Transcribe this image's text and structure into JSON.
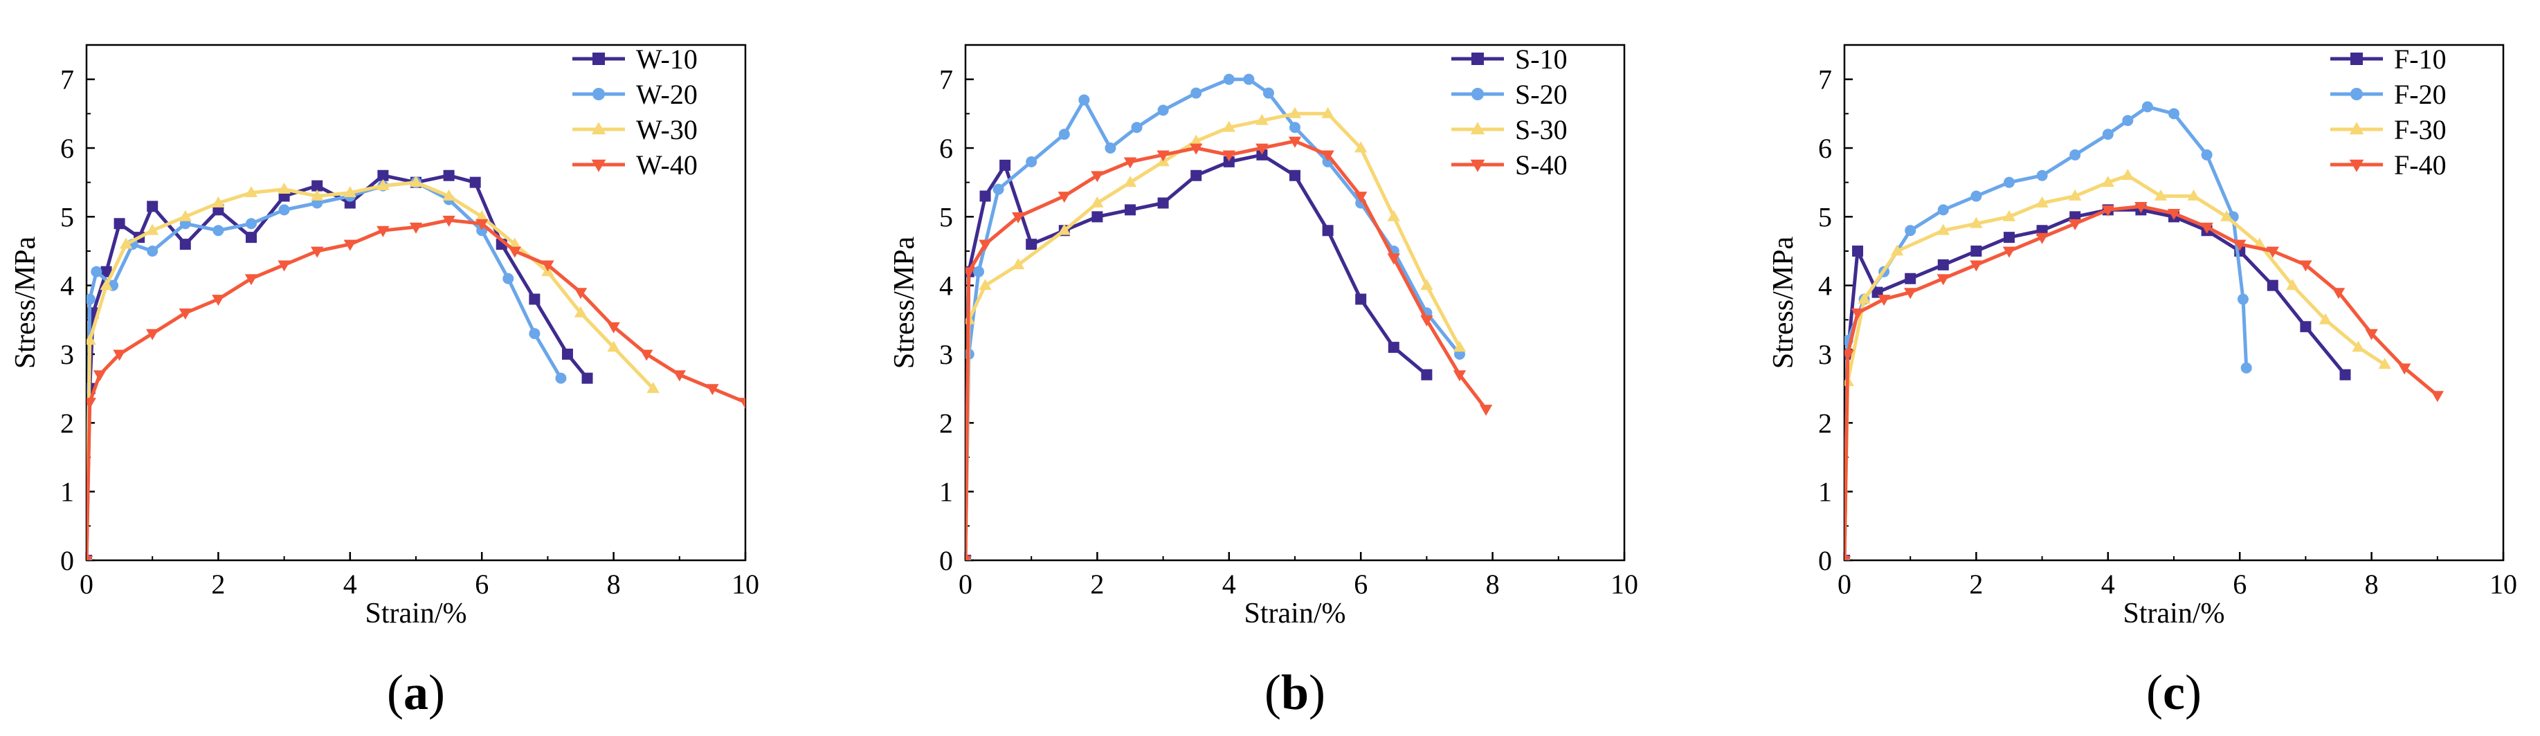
{
  "chart_data": [
    {
      "type": "line",
      "panel": "a",
      "caption": {
        "open": "(",
        "letter": "a",
        "close": ")"
      },
      "xlabel": "Strain/%",
      "ylabel": "Stress/MPa",
      "xlim": [
        0,
        10
      ],
      "ylim": [
        0,
        7.5
      ],
      "xticks": [
        0,
        2,
        4,
        6,
        8,
        10
      ],
      "yticks": [
        0,
        1,
        2,
        3,
        4,
        5,
        6,
        7
      ],
      "grid": false,
      "legend_position": "top-right",
      "series": [
        {
          "name": "W-10",
          "color": "#3f2b8f",
          "marker": "square",
          "x": [
            0,
            0.05,
            0.1,
            0.3,
            0.5,
            0.8,
            1.0,
            1.5,
            2.0,
            2.5,
            3.0,
            3.5,
            4.0,
            4.5,
            5.0,
            5.5,
            5.9,
            6.3,
            6.8,
            7.3,
            7.6
          ],
          "y": [
            0,
            2.5,
            3.6,
            4.2,
            4.9,
            4.7,
            5.15,
            4.6,
            5.1,
            4.7,
            5.3,
            5.45,
            5.2,
            5.6,
            5.5,
            5.6,
            5.5,
            4.6,
            3.8,
            3.0,
            2.65
          ]
        },
        {
          "name": "W-20",
          "color": "#6aa6ea",
          "marker": "circle",
          "x": [
            0,
            0.05,
            0.15,
            0.4,
            0.7,
            1.0,
            1.5,
            2.0,
            2.5,
            3.0,
            3.5,
            4.0,
            4.5,
            5.0,
            5.5,
            6.0,
            6.4,
            6.8,
            7.2
          ],
          "y": [
            0,
            3.8,
            4.2,
            4.0,
            4.6,
            4.5,
            4.9,
            4.8,
            4.9,
            5.1,
            5.2,
            5.3,
            5.45,
            5.5,
            5.25,
            4.8,
            4.1,
            3.3,
            2.65
          ]
        },
        {
          "name": "W-30",
          "color": "#f7d773",
          "marker": "triangle-up",
          "x": [
            0,
            0.05,
            0.3,
            0.6,
            1.0,
            1.5,
            2.0,
            2.5,
            3.0,
            3.5,
            4.0,
            4.5,
            5.0,
            5.5,
            6.0,
            6.5,
            7.0,
            7.5,
            8.0,
            8.6
          ],
          "y": [
            0,
            3.2,
            4.0,
            4.6,
            4.8,
            5.0,
            5.2,
            5.35,
            5.4,
            5.3,
            5.35,
            5.45,
            5.5,
            5.3,
            5.0,
            4.6,
            4.2,
            3.6,
            3.1,
            2.5
          ]
        },
        {
          "name": "W-40",
          "color": "#f4593b",
          "marker": "triangle-down",
          "x": [
            0,
            0.05,
            0.2,
            0.5,
            1.0,
            1.5,
            2.0,
            2.5,
            3.0,
            3.5,
            4.0,
            4.5,
            5.0,
            5.5,
            6.0,
            6.5,
            7.0,
            7.5,
            8.0,
            8.5,
            9.0,
            9.5,
            10.0
          ],
          "y": [
            0,
            2.3,
            2.7,
            3.0,
            3.3,
            3.6,
            3.8,
            4.1,
            4.3,
            4.5,
            4.6,
            4.8,
            4.85,
            4.95,
            4.9,
            4.5,
            4.3,
            3.9,
            3.4,
            3.0,
            2.7,
            2.5,
            2.3
          ]
        }
      ]
    },
    {
      "type": "line",
      "panel": "b",
      "caption": {
        "open": "(",
        "letter": "b",
        "close": ")"
      },
      "xlabel": "Strain/%",
      "ylabel": "Stress/MPa",
      "xlim": [
        0,
        10
      ],
      "ylim": [
        0,
        7.5
      ],
      "xticks": [
        0,
        2,
        4,
        6,
        8,
        10
      ],
      "yticks": [
        0,
        1,
        2,
        3,
        4,
        5,
        6,
        7
      ],
      "grid": false,
      "legend_position": "top-right",
      "series": [
        {
          "name": "S-10",
          "color": "#3f2b8f",
          "marker": "square",
          "x": [
            0,
            0.05,
            0.3,
            0.6,
            1.0,
            1.5,
            2.0,
            2.5,
            3.0,
            3.5,
            4.0,
            4.5,
            5.0,
            5.5,
            6.0,
            6.5,
            7.0
          ],
          "y": [
            0,
            4.2,
            5.3,
            5.75,
            4.6,
            4.8,
            5.0,
            5.1,
            5.2,
            5.6,
            5.8,
            5.9,
            5.6,
            4.8,
            3.8,
            3.1,
            2.7
          ]
        },
        {
          "name": "S-20",
          "color": "#6aa6ea",
          "marker": "circle",
          "x": [
            0,
            0.05,
            0.2,
            0.5,
            1.0,
            1.5,
            1.8,
            2.2,
            2.6,
            3.0,
            3.5,
            4.0,
            4.3,
            4.6,
            5.0,
            5.5,
            6.0,
            6.5,
            7.0,
            7.5
          ],
          "y": [
            0,
            3.0,
            4.2,
            5.4,
            5.8,
            6.2,
            6.7,
            6.0,
            6.3,
            6.55,
            6.8,
            7.0,
            7.0,
            6.8,
            6.3,
            5.8,
            5.2,
            4.5,
            3.6,
            3.0
          ]
        },
        {
          "name": "S-30",
          "color": "#f7d773",
          "marker": "triangle-up",
          "x": [
            0,
            0.05,
            0.3,
            0.8,
            1.5,
            2.0,
            2.5,
            3.0,
            3.5,
            4.0,
            4.5,
            5.0,
            5.5,
            6.0,
            6.5,
            7.0,
            7.5
          ],
          "y": [
            0,
            3.5,
            4.0,
            4.3,
            4.8,
            5.2,
            5.5,
            5.8,
            6.1,
            6.3,
            6.4,
            6.5,
            6.5,
            6.0,
            5.0,
            4.0,
            3.1
          ]
        },
        {
          "name": "S-40",
          "color": "#f4593b",
          "marker": "triangle-down",
          "x": [
            0,
            0.05,
            0.3,
            0.8,
            1.5,
            2.0,
            2.5,
            3.0,
            3.5,
            4.0,
            4.5,
            5.0,
            5.5,
            6.0,
            6.5,
            7.0,
            7.5,
            7.9
          ],
          "y": [
            0,
            4.2,
            4.6,
            5.0,
            5.3,
            5.6,
            5.8,
            5.9,
            6.0,
            5.9,
            6.0,
            6.1,
            5.9,
            5.3,
            4.4,
            3.5,
            2.7,
            2.2
          ]
        }
      ]
    },
    {
      "type": "line",
      "panel": "c",
      "caption": {
        "open": "(",
        "letter": "c",
        "close": ")"
      },
      "xlabel": "Strain/%",
      "ylabel": "Stress/MPa",
      "xlim": [
        0,
        10
      ],
      "ylim": [
        0,
        7.5
      ],
      "xticks": [
        0,
        2,
        4,
        6,
        8,
        10
      ],
      "yticks": [
        0,
        1,
        2,
        3,
        4,
        5,
        6,
        7
      ],
      "grid": false,
      "legend_position": "top-right",
      "series": [
        {
          "name": "F-10",
          "color": "#3f2b8f",
          "marker": "square",
          "x": [
            0,
            0.05,
            0.2,
            0.5,
            1.0,
            1.5,
            2.0,
            2.5,
            3.0,
            3.5,
            4.0,
            4.5,
            5.0,
            5.5,
            6.0,
            6.5,
            7.0,
            7.6
          ],
          "y": [
            0,
            3.0,
            4.5,
            3.9,
            4.1,
            4.3,
            4.5,
            4.7,
            4.8,
            5.0,
            5.1,
            5.1,
            5.0,
            4.8,
            4.5,
            4.0,
            3.4,
            2.7
          ]
        },
        {
          "name": "F-20",
          "color": "#6aa6ea",
          "marker": "circle",
          "x": [
            0,
            0.05,
            0.3,
            0.6,
            1.0,
            1.5,
            2.0,
            2.5,
            3.0,
            3.5,
            4.0,
            4.3,
            4.6,
            5.0,
            5.5,
            5.9,
            6.05,
            6.1
          ],
          "y": [
            0,
            3.2,
            3.8,
            4.2,
            4.8,
            5.1,
            5.3,
            5.5,
            5.6,
            5.9,
            6.2,
            6.4,
            6.6,
            6.5,
            5.9,
            5.0,
            3.8,
            2.8
          ]
        },
        {
          "name": "F-30",
          "color": "#f7d773",
          "marker": "triangle-up",
          "x": [
            0,
            0.05,
            0.3,
            0.8,
            1.5,
            2.0,
            2.5,
            3.0,
            3.5,
            4.0,
            4.3,
            4.8,
            5.3,
            5.8,
            6.3,
            6.8,
            7.3,
            7.8,
            8.2
          ],
          "y": [
            0,
            2.6,
            3.8,
            4.5,
            4.8,
            4.9,
            5.0,
            5.2,
            5.3,
            5.5,
            5.6,
            5.3,
            5.3,
            5.0,
            4.6,
            4.0,
            3.5,
            3.1,
            2.85
          ]
        },
        {
          "name": "F-40",
          "color": "#f4593b",
          "marker": "triangle-down",
          "x": [
            0,
            0.05,
            0.2,
            0.6,
            1.0,
            1.5,
            2.0,
            2.5,
            3.0,
            3.5,
            4.0,
            4.5,
            5.0,
            5.5,
            6.0,
            6.5,
            7.0,
            7.5,
            8.0,
            8.5,
            9.0
          ],
          "y": [
            0,
            3.0,
            3.6,
            3.8,
            3.9,
            4.1,
            4.3,
            4.5,
            4.7,
            4.9,
            5.1,
            5.15,
            5.05,
            4.85,
            4.6,
            4.5,
            4.3,
            3.9,
            3.3,
            2.8,
            2.4
          ]
        }
      ]
    }
  ]
}
